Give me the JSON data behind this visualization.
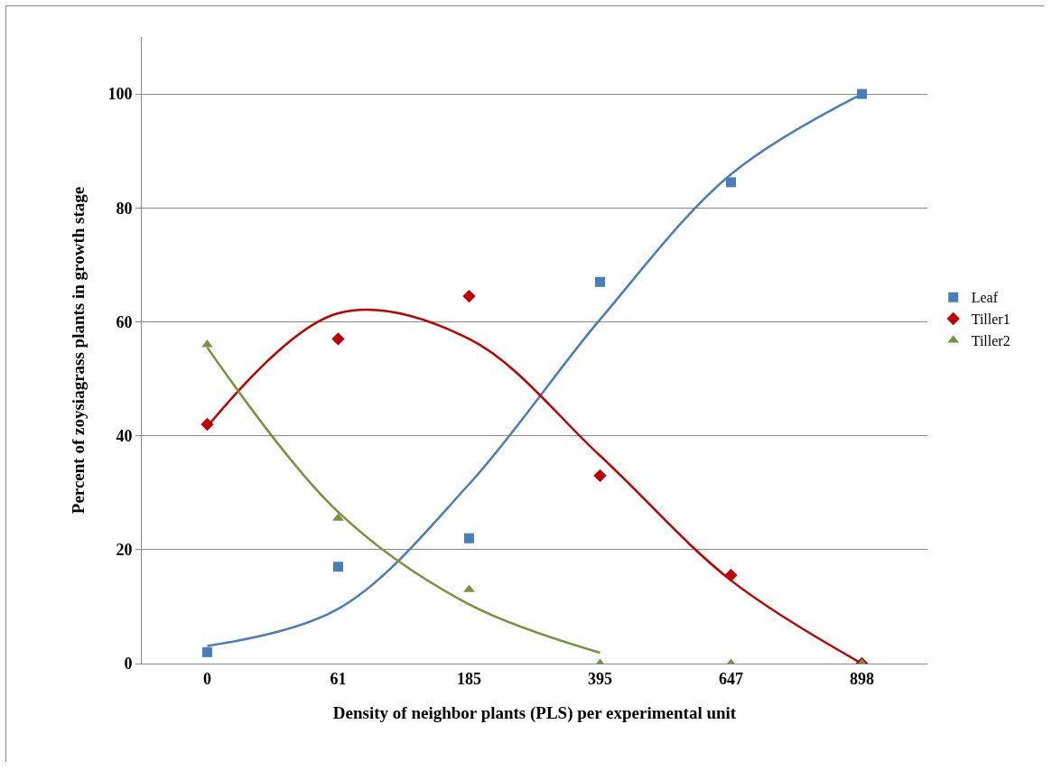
{
  "chart_data": {
    "type": "scatter",
    "xlabel": "Density of neighbor plants (PLS) per experimental unit",
    "ylabel": "Percent of zoysiagrass plants in growth stage",
    "categories": [
      "0",
      "61",
      "185",
      "395",
      "647",
      "898"
    ],
    "ylim": [
      0,
      110
    ],
    "yticks": [
      0,
      20,
      40,
      60,
      80,
      100
    ],
    "grid": "y",
    "legend": "right",
    "series": [
      {
        "name": "Leaf",
        "marker": "square",
        "color": "#4a7ebb",
        "values": [
          2,
          17,
          22,
          67,
          84.5,
          100
        ]
      },
      {
        "name": "Tiller1",
        "marker": "diamond",
        "color": "#c00000",
        "values": [
          42,
          57,
          64.5,
          33,
          15.5,
          0
        ]
      },
      {
        "name": "Tiller2",
        "marker": "triangle",
        "color": "#77933c",
        "values": [
          56,
          25.5,
          13,
          0,
          0,
          0
        ]
      },
      {
        "type": "line",
        "color": "#4a7ebb",
        "values": [
          3.1,
          9.6,
          31.5,
          60.4,
          85.9,
          100
        ]
      },
      {
        "type": "line",
        "color": "#c00000",
        "values": [
          41.6,
          61.5,
          57,
          36.5,
          14.6,
          0
        ]
      },
      {
        "type": "line",
        "color": "#77933c",
        "values": [
          55.5,
          26.6,
          10.4,
          1.9,
          null,
          null
        ]
      }
    ]
  }
}
